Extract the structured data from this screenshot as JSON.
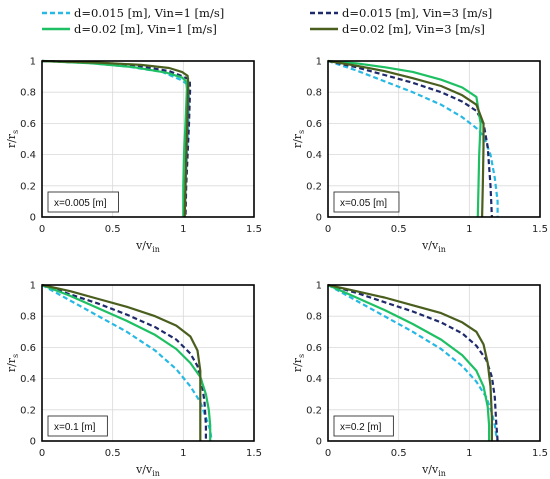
{
  "chart_data": {
    "type": "line",
    "legend": [
      {
        "label": "d=0.015 [m], Vin=1 [m/s]",
        "color": "#27b9e3",
        "dash": "5,3"
      },
      {
        "label": "d=0.015 [m], Vin=3 [m/s]",
        "color": "#1f2a6b",
        "dash": "5,3"
      },
      {
        "label": "d=0.02 [m], Vin=1 [m/s]",
        "color": "#1ec063",
        "dash": ""
      },
      {
        "label": "d=0.02 [m], Vin=3 [m/s]",
        "color": "#4a5e1e",
        "dash": ""
      }
    ],
    "xlabel": "v/v",
    "xlabel_sub": "in",
    "ylabel": "r/r",
    "ylabel_sub": "s",
    "xlim": [
      0,
      1.5
    ],
    "ylim": [
      0,
      1
    ],
    "xticks": [
      "0",
      "0.5",
      "1",
      "1.5"
    ],
    "yticks": [
      "0",
      "0.2",
      "0.4",
      "0.6",
      "0.8",
      "1"
    ],
    "grid": true,
    "panels": [
      {
        "annotation": "x=0.005 [m]",
        "series": [
          {
            "name": "d=0.015 [m], Vin=1 [m/s]",
            "x": [
              0,
              0.3,
              0.6,
              0.85,
              0.98,
              1.03,
              1.04,
              1.035,
              1.025,
              1.015,
              1.01
            ],
            "y": [
              1,
              0.99,
              0.965,
              0.93,
              0.88,
              0.85,
              0.8,
              0.6,
              0.4,
              0.2,
              0
            ]
          },
          {
            "name": "d=0.015 [m], Vin=3 [m/s]",
            "x": [
              0,
              0.4,
              0.7,
              0.9,
              1.0,
              1.045,
              1.048,
              1.04,
              1.03,
              1.02,
              1.015
            ],
            "y": [
              1,
              0.985,
              0.965,
              0.935,
              0.9,
              0.88,
              0.82,
              0.6,
              0.4,
              0.2,
              0
            ]
          },
          {
            "name": "d=0.02 [m], Vin=1 [m/s]",
            "x": [
              0,
              0.35,
              0.65,
              0.88,
              0.99,
              1.02,
              1.025,
              1.015,
              1.005,
              1.0,
              1.0
            ],
            "y": [
              1,
              0.985,
              0.96,
              0.925,
              0.895,
              0.87,
              0.82,
              0.6,
              0.4,
              0.2,
              0
            ]
          },
          {
            "name": "d=0.02 [m], Vin=3 [m/s]",
            "x": [
              0,
              0.4,
              0.7,
              0.9,
              0.99,
              1.03,
              1.035,
              1.028,
              1.02,
              1.015,
              1.01
            ],
            "y": [
              1,
              0.99,
              0.975,
              0.955,
              0.93,
              0.905,
              0.86,
              0.6,
              0.4,
              0.2,
              0
            ]
          }
        ]
      },
      {
        "annotation": "x=0.05 [m]",
        "series": [
          {
            "name": "d=0.015 [m], Vin=1 [m/s]",
            "x": [
              0,
              0.2,
              0.4,
              0.6,
              0.8,
              0.95,
              1.05,
              1.1,
              1.15,
              1.18,
              1.2,
              1.2
            ],
            "y": [
              1,
              0.94,
              0.87,
              0.8,
              0.72,
              0.64,
              0.57,
              0.52,
              0.4,
              0.25,
              0.1,
              0
            ]
          },
          {
            "name": "d=0.015 [m], Vin=3 [m/s]",
            "x": [
              0,
              0.2,
              0.4,
              0.6,
              0.8,
              0.95,
              1.05,
              1.1,
              1.13,
              1.15,
              1.16
            ],
            "y": [
              1,
              0.96,
              0.91,
              0.86,
              0.8,
              0.74,
              0.68,
              0.6,
              0.45,
              0.2,
              0
            ]
          },
          {
            "name": "d=0.02 [m], Vin=1 [m/s]",
            "x": [
              0,
              0.2,
              0.4,
              0.6,
              0.8,
              0.95,
              1.05,
              1.08,
              1.07,
              1.065,
              1.06
            ],
            "y": [
              1,
              0.985,
              0.96,
              0.93,
              0.88,
              0.83,
              0.77,
              0.6,
              0.4,
              0.2,
              0
            ]
          },
          {
            "name": "d=0.02 [m], Vin=3 [m/s]",
            "x": [
              0,
              0.2,
              0.4,
              0.6,
              0.8,
              0.95,
              1.05,
              1.1,
              1.1,
              1.095,
              1.09
            ],
            "y": [
              1,
              0.97,
              0.935,
              0.89,
              0.84,
              0.78,
              0.72,
              0.6,
              0.45,
              0.2,
              0
            ]
          }
        ]
      },
      {
        "annotation": "x=0.1 [m]",
        "series": [
          {
            "name": "d=0.015 [m], Vin=1 [m/s]",
            "x": [
              0,
              0.2,
              0.4,
              0.6,
              0.8,
              0.95,
              1.05,
              1.12,
              1.16,
              1.19,
              1.2
            ],
            "y": [
              1,
              0.9,
              0.8,
              0.7,
              0.58,
              0.46,
              0.35,
              0.25,
              0.15,
              0.07,
              0
            ]
          },
          {
            "name": "d=0.015 [m], Vin=3 [m/s]",
            "x": [
              0,
              0.2,
              0.4,
              0.6,
              0.8,
              0.95,
              1.05,
              1.1,
              1.13,
              1.15,
              1.16,
              1.16
            ],
            "y": [
              1,
              0.94,
              0.88,
              0.81,
              0.73,
              0.65,
              0.56,
              0.48,
              0.38,
              0.25,
              0.1,
              0
            ]
          },
          {
            "name": "d=0.02 [m], Vin=1 [m/s]",
            "x": [
              0,
              0.2,
              0.4,
              0.6,
              0.8,
              0.95,
              1.05,
              1.12,
              1.16,
              1.18,
              1.19,
              1.19
            ],
            "y": [
              1,
              0.93,
              0.85,
              0.77,
              0.68,
              0.59,
              0.5,
              0.41,
              0.3,
              0.2,
              0.1,
              0
            ]
          },
          {
            "name": "d=0.02 [m], Vin=3 [m/s]",
            "x": [
              0,
              0.2,
              0.4,
              0.6,
              0.8,
              0.95,
              1.05,
              1.1,
              1.12,
              1.12,
              1.12
            ],
            "y": [
              1,
              0.96,
              0.91,
              0.86,
              0.8,
              0.74,
              0.67,
              0.58,
              0.45,
              0.2,
              0
            ]
          }
        ]
      },
      {
        "annotation": "x=0.2 [m]",
        "series": [
          {
            "name": "d=0.015 [m], Vin=1 [m/s]",
            "x": [
              0,
              0.2,
              0.4,
              0.6,
              0.8,
              0.95,
              1.05,
              1.12,
              1.16,
              1.18,
              1.19,
              1.2
            ],
            "y": [
              1,
              0.9,
              0.8,
              0.7,
              0.59,
              0.48,
              0.38,
              0.28,
              0.18,
              0.1,
              0.04,
              0
            ]
          },
          {
            "name": "d=0.015 [m], Vin=3 [m/s]",
            "x": [
              0,
              0.2,
              0.4,
              0.6,
              0.8,
              0.95,
              1.05,
              1.12,
              1.16,
              1.18,
              1.19,
              1.2
            ],
            "y": [
              1,
              0.95,
              0.89,
              0.83,
              0.76,
              0.69,
              0.61,
              0.52,
              0.41,
              0.28,
              0.12,
              0
            ]
          },
          {
            "name": "d=0.02 [m], Vin=1 [m/s]",
            "x": [
              0,
              0.2,
              0.4,
              0.6,
              0.8,
              0.95,
              1.05,
              1.1,
              1.13,
              1.14,
              1.14
            ],
            "y": [
              1,
              0.92,
              0.84,
              0.75,
              0.65,
              0.55,
              0.45,
              0.35,
              0.22,
              0.1,
              0
            ]
          },
          {
            "name": "d=0.02 [m], Vin=3 [m/s]",
            "x": [
              0,
              0.2,
              0.4,
              0.6,
              0.8,
              0.95,
              1.05,
              1.1,
              1.13,
              1.15,
              1.16,
              1.16
            ],
            "y": [
              1,
              0.96,
              0.92,
              0.87,
              0.82,
              0.76,
              0.7,
              0.62,
              0.5,
              0.35,
              0.15,
              0
            ]
          }
        ]
      }
    ]
  }
}
